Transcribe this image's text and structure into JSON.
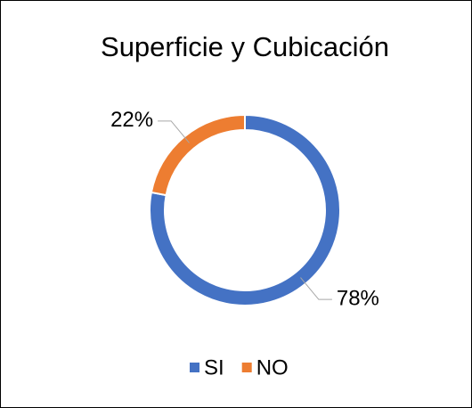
{
  "chart_data": {
    "type": "donut",
    "title": "Superficie y Cubicación",
    "categories": [
      "SI",
      "NO"
    ],
    "values": [
      78,
      22
    ],
    "value_labels": [
      "78%",
      "22%"
    ],
    "colors": [
      "#4472c4",
      "#ed7d31"
    ],
    "legend": "bottom"
  }
}
